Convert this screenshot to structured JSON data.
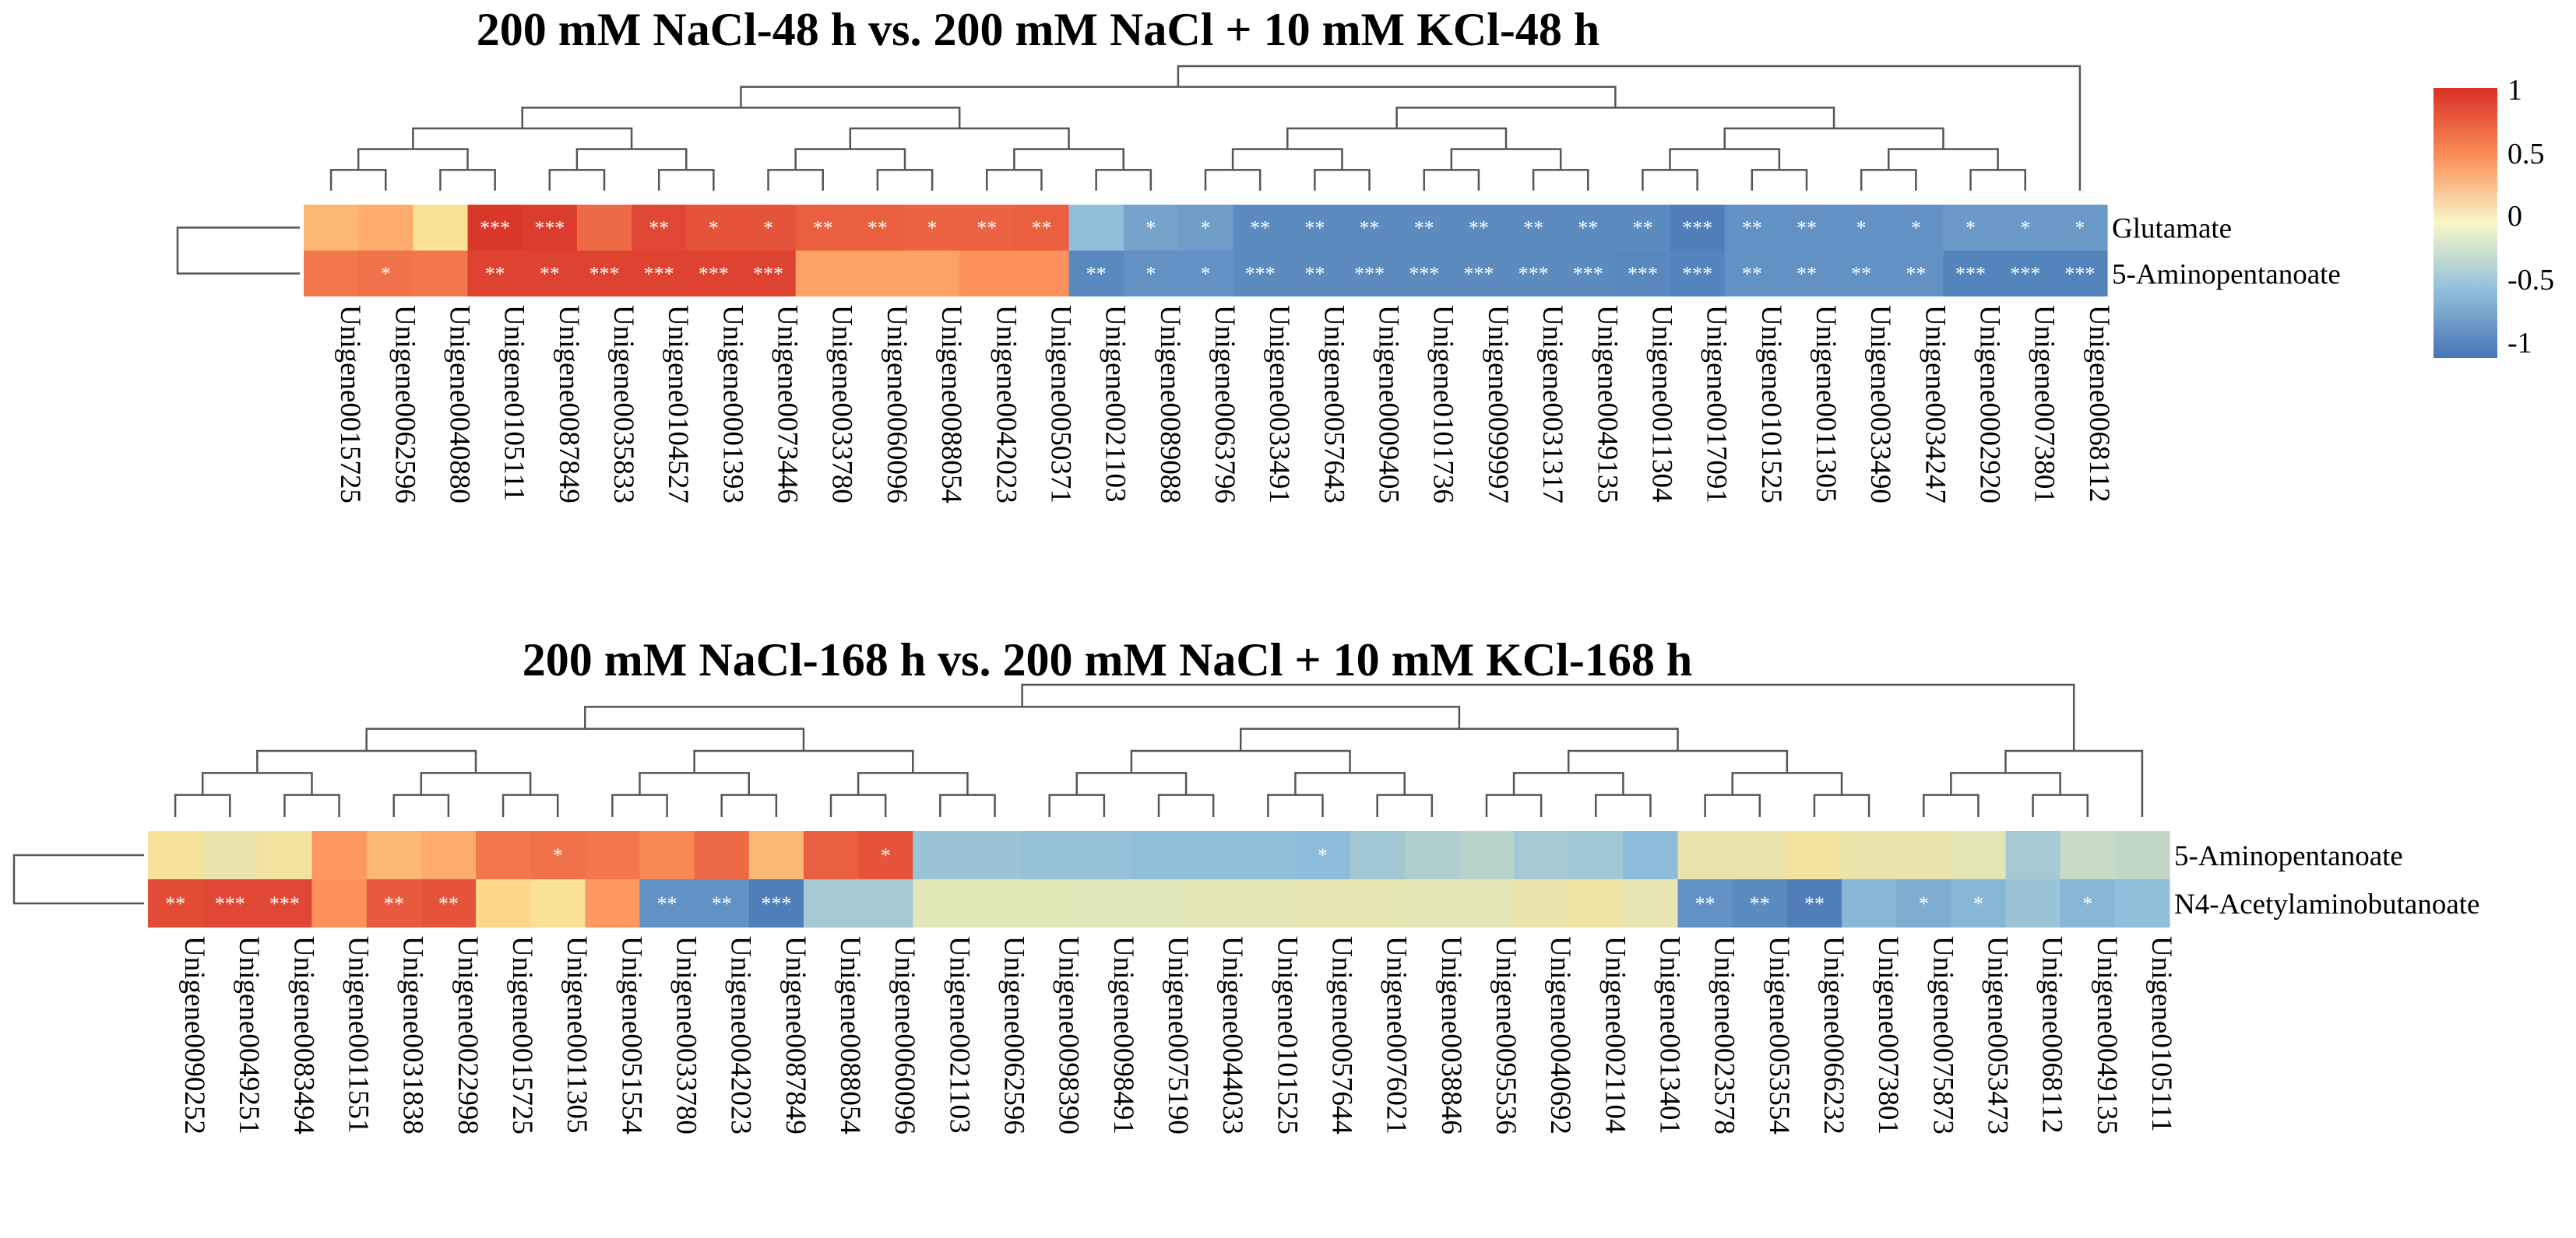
{
  "colors": {
    "scale": [
      "#4575b4",
      "#91bfdb",
      "#e0e7ba",
      "#fee090",
      "#fc8d59",
      "#d73027"
    ],
    "dendrogram": "#555555",
    "star": "#ffffff"
  },
  "colorbar": {
    "ticks": [
      "1",
      "0.5",
      "0",
      "-0.5",
      "-1"
    ],
    "range": [
      -1,
      1
    ]
  },
  "chart_data": [
    {
      "type": "heatmap",
      "title": "200 mM NaCl-48 h vs. 200 mM NaCl + 10 mM KCl-48 h",
      "rows": [
        "Glutamate",
        "5-Aminopentanoate"
      ],
      "columns": [
        "Unigene0015725",
        "Unigene0062596",
        "Unigene0040880",
        "Unigene0105111",
        "Unigene0087849",
        "Unigene0035833",
        "Unigene0104527",
        "Unigene0001393",
        "Unigene0073446",
        "Unigene0033780",
        "Unigene0060096",
        "Unigene0088054",
        "Unigene0042023",
        "Unigene0050371",
        "Unigene0021103",
        "Unigene0089088",
        "Unigene0063796",
        "Unigene0033491",
        "Unigene0057643",
        "Unigene0009405",
        "Unigene0101736",
        "Unigene0099997",
        "Unigene0031317",
        "Unigene0049135",
        "Unigene0011304",
        "Unigene0017091",
        "Unigene0101525",
        "Unigene0011305",
        "Unigene0033490",
        "Unigene0034247",
        "Unigene0002920",
        "Unigene0073801",
        "Unigene0068112"
      ],
      "values": [
        [
          0.4,
          0.45,
          0.15,
          0.97,
          0.95,
          0.75,
          0.9,
          0.85,
          0.85,
          0.8,
          0.8,
          0.78,
          0.78,
          0.8,
          -0.6,
          -0.75,
          -0.78,
          -0.88,
          -0.88,
          -0.88,
          -0.88,
          -0.88,
          -0.88,
          -0.88,
          -0.88,
          -0.95,
          -0.85,
          -0.85,
          -0.85,
          -0.85,
          -0.8,
          -0.8,
          -0.8
        ],
        [
          0.7,
          0.72,
          0.7,
          0.92,
          0.92,
          0.92,
          0.92,
          0.92,
          0.92,
          0.5,
          0.5,
          0.5,
          0.58,
          0.58,
          -0.9,
          -0.85,
          -0.85,
          -0.88,
          -0.88,
          -0.88,
          -0.88,
          -0.88,
          -0.88,
          -0.88,
          -0.9,
          -0.92,
          -0.85,
          -0.85,
          -0.85,
          -0.85,
          -0.92,
          -0.92,
          -0.92
        ]
      ],
      "significance": [
        [
          "",
          "",
          "",
          "***",
          "***",
          "",
          "**",
          "*",
          "*",
          "**",
          "**",
          "*",
          "**",
          "**",
          "",
          "*",
          "*",
          "**",
          "**",
          "**",
          "**",
          "**",
          "**",
          "**",
          "**",
          "***",
          "**",
          "**",
          "*",
          "*",
          "*",
          "*",
          "*"
        ],
        [
          "",
          "*",
          "",
          "**",
          "**",
          "***",
          "***",
          "***",
          "***",
          "",
          "",
          "",
          "",
          "",
          "**",
          "*",
          "*",
          "***",
          "**",
          "***",
          "***",
          "***",
          "***",
          "***",
          "***",
          "***",
          "**",
          "**",
          "**",
          "**",
          "***",
          "***",
          "***"
        ]
      ]
    },
    {
      "type": "heatmap",
      "title": "200 mM NaCl-168 h vs. 200 mM NaCl + 10 mM KCl-168 h",
      "rows": [
        "5-Aminopentanoate",
        "N4-Acetylaminobutanoate"
      ],
      "columns": [
        "Unigene0090252",
        "Unigene0049251",
        "Unigene0083494",
        "Unigene0011551",
        "Unigene0031838",
        "Unigene0022998",
        "Unigene0015725",
        "Unigene0011305",
        "Unigene0051554",
        "Unigene0033780",
        "Unigene0042023",
        "Unigene0087849",
        "Unigene0088054",
        "Unigene0060096",
        "Unigene0021103",
        "Unigene0062596",
        "Unigene0098390",
        "Unigene0098491",
        "Unigene0075190",
        "Unigene0044033",
        "Unigene0101525",
        "Unigene0057644",
        "Unigene0076021",
        "Unigene0038846",
        "Unigene0095536",
        "Unigene0040692",
        "Unigene0021104",
        "Unigene0013401",
        "Unigene0023578",
        "Unigene0053554",
        "Unigene0066232",
        "Unigene0073801",
        "Unigene0075873",
        "Unigene0053473",
        "Unigene0068112",
        "Unigene0049135",
        "Unigene0105111"
      ],
      "values": [
        [
          0.1,
          -0.05,
          0.05,
          0.55,
          0.4,
          0.45,
          0.7,
          0.72,
          0.7,
          0.62,
          0.75,
          0.4,
          0.8,
          0.85,
          -0.55,
          -0.55,
          -0.58,
          -0.58,
          -0.6,
          -0.6,
          -0.6,
          -0.62,
          -0.52,
          -0.45,
          -0.4,
          -0.5,
          -0.52,
          -0.62,
          -0.05,
          -0.05,
          0.05,
          -0.05,
          -0.05,
          -0.15,
          -0.5,
          -0.32,
          -0.35
        ],
        [
          0.88,
          0.9,
          0.9,
          0.58,
          0.82,
          0.85,
          0.25,
          0.15,
          0.55,
          -0.85,
          -0.85,
          -0.95,
          -0.5,
          -0.5,
          -0.18,
          -0.18,
          -0.18,
          -0.2,
          -0.2,
          -0.15,
          -0.15,
          -0.12,
          -0.12,
          -0.15,
          -0.15,
          -0.05,
          0.0,
          -0.1,
          -0.85,
          -0.88,
          -0.95,
          -0.65,
          -0.7,
          -0.65,
          -0.55,
          -0.65,
          -0.6
        ]
      ],
      "significance": [
        [
          "",
          "",
          "",
          "",
          "",
          "",
          "",
          "*",
          "",
          "",
          "",
          "",
          "",
          "*",
          "",
          "",
          "",
          "",
          "",
          "",
          "",
          "*",
          "",
          "",
          "",
          "",
          "",
          "",
          "",
          "",
          "",
          "",
          "",
          "",
          "",
          "",
          ""
        ],
        [
          "**",
          "***",
          "***",
          "",
          "**",
          "**",
          "",
          "",
          "",
          "**",
          "**",
          "***",
          "",
          "",
          "",
          "",
          "",
          "",
          "",
          "",
          "",
          "",
          "",
          "",
          "",
          "",
          "",
          "",
          "**",
          "**",
          "**",
          "",
          "*",
          "*",
          "",
          "*",
          ""
        ]
      ]
    }
  ]
}
